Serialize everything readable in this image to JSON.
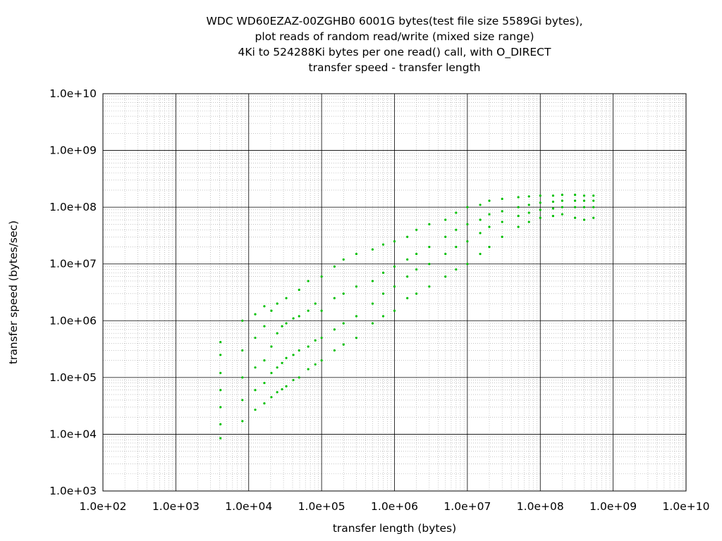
{
  "chart_data": {
    "type": "scatter",
    "title": [
      "WDC WD60EZAZ-00ZGHB0 6001G bytes(test file size 5589Gi bytes),",
      "plot reads of random read/write (mixed size range)",
      "4Ki to 524288Ki bytes per one read() call, with O_DIRECT",
      "transfer speed - transfer length"
    ],
    "xlabel": "transfer length (bytes)",
    "ylabel": "transfer speed (bytes/sec)",
    "x_scale": "log",
    "y_scale": "log",
    "xlim": [
      100,
      10000000000
    ],
    "ylim": [
      1000,
      10000000000
    ],
    "x_ticks": [
      {
        "value": 100,
        "label": "1.0e+02"
      },
      {
        "value": 1000,
        "label": "1.0e+03"
      },
      {
        "value": 10000,
        "label": "1.0e+04"
      },
      {
        "value": 100000,
        "label": "1.0e+05"
      },
      {
        "value": 1000000,
        "label": "1.0e+06"
      },
      {
        "value": 10000000,
        "label": "1.0e+07"
      },
      {
        "value": 100000000,
        "label": "1.0e+08"
      },
      {
        "value": 1000000000,
        "label": "1.0e+09"
      },
      {
        "value": 10000000000,
        "label": "1.0e+10"
      }
    ],
    "y_ticks": [
      {
        "value": 1000,
        "label": "1.0e+03"
      },
      {
        "value": 10000,
        "label": "1.0e+04"
      },
      {
        "value": 100000,
        "label": "1.0e+05"
      },
      {
        "value": 1000000,
        "label": "1.0e+06"
      },
      {
        "value": 10000000,
        "label": "1.0e+07"
      },
      {
        "value": 100000000,
        "label": "1.0e+08"
      },
      {
        "value": 1000000000,
        "label": "1.0e+09"
      },
      {
        "value": 10000000000,
        "label": "1.0e+10"
      }
    ],
    "grid": true,
    "minor_grid": true,
    "series": [
      {
        "color": "#00c000",
        "points": [
          [
            4096,
            8500
          ],
          [
            4096,
            15000
          ],
          [
            4096,
            30000
          ],
          [
            4096,
            60000
          ],
          [
            4096,
            120000
          ],
          [
            4096,
            250000
          ],
          [
            4096,
            420000
          ],
          [
            8192,
            17000
          ],
          [
            8192,
            40000
          ],
          [
            8192,
            100000
          ],
          [
            8192,
            300000
          ],
          [
            8192,
            1000000
          ],
          [
            12288,
            27000
          ],
          [
            12288,
            60000
          ],
          [
            12288,
            150000
          ],
          [
            12288,
            500000
          ],
          [
            12288,
            1300000
          ],
          [
            16384,
            35000
          ],
          [
            16384,
            80000
          ],
          [
            16384,
            200000
          ],
          [
            16384,
            800000
          ],
          [
            16384,
            1800000
          ],
          [
            20480,
            45000
          ],
          [
            20480,
            120000
          ],
          [
            20480,
            350000
          ],
          [
            20480,
            1500000
          ],
          [
            24576,
            55000
          ],
          [
            24576,
            150000
          ],
          [
            24576,
            600000
          ],
          [
            24576,
            2000000
          ],
          [
            28672,
            62000
          ],
          [
            28672,
            180000
          ],
          [
            28672,
            800000
          ],
          [
            32768,
            70000
          ],
          [
            32768,
            220000
          ],
          [
            32768,
            900000
          ],
          [
            32768,
            2500000
          ],
          [
            40960,
            90000
          ],
          [
            40960,
            250000
          ],
          [
            40960,
            1100000
          ],
          [
            49152,
            100000
          ],
          [
            49152,
            300000
          ],
          [
            49152,
            1200000
          ],
          [
            49152,
            3500000
          ],
          [
            65536,
            140000
          ],
          [
            65536,
            350000
          ],
          [
            65536,
            1500000
          ],
          [
            65536,
            5000000
          ],
          [
            81920,
            170000
          ],
          [
            81920,
            450000
          ],
          [
            81920,
            2000000
          ],
          [
            100000,
            200000
          ],
          [
            100000,
            500000
          ],
          [
            100000,
            1500000
          ],
          [
            100000,
            6000000
          ],
          [
            150000,
            300000
          ],
          [
            150000,
            700000
          ],
          [
            150000,
            2500000
          ],
          [
            150000,
            9000000
          ],
          [
            200000,
            380000
          ],
          [
            200000,
            900000
          ],
          [
            200000,
            3000000
          ],
          [
            200000,
            12000000
          ],
          [
            300000,
            500000
          ],
          [
            300000,
            1200000
          ],
          [
            300000,
            4000000
          ],
          [
            300000,
            15000000
          ],
          [
            500000,
            900000
          ],
          [
            500000,
            2000000
          ],
          [
            500000,
            5000000
          ],
          [
            500000,
            18000000
          ],
          [
            700000,
            1200000
          ],
          [
            700000,
            3000000
          ],
          [
            700000,
            7000000
          ],
          [
            700000,
            22000000
          ],
          [
            1000000,
            1500000
          ],
          [
            1000000,
            4000000
          ],
          [
            1000000,
            9000000
          ],
          [
            1000000,
            25000000
          ],
          [
            1500000,
            2500000
          ],
          [
            1500000,
            6000000
          ],
          [
            1500000,
            12000000
          ],
          [
            1500000,
            30000000
          ],
          [
            2000000,
            3000000
          ],
          [
            2000000,
            8000000
          ],
          [
            2000000,
            15000000
          ],
          [
            2000000,
            40000000
          ],
          [
            3000000,
            4000000
          ],
          [
            3000000,
            10000000
          ],
          [
            3000000,
            20000000
          ],
          [
            3000000,
            50000000
          ],
          [
            5000000,
            6000000
          ],
          [
            5000000,
            15000000
          ],
          [
            5000000,
            30000000
          ],
          [
            5000000,
            60000000
          ],
          [
            7000000,
            8000000
          ],
          [
            7000000,
            20000000
          ],
          [
            7000000,
            40000000
          ],
          [
            7000000,
            80000000
          ],
          [
            10000000,
            10000000
          ],
          [
            10000000,
            25000000
          ],
          [
            10000000,
            50000000
          ],
          [
            10000000,
            100000000
          ],
          [
            15000000,
            15000000
          ],
          [
            15000000,
            35000000
          ],
          [
            15000000,
            60000000
          ],
          [
            15000000,
            110000000
          ],
          [
            20000000,
            20000000
          ],
          [
            20000000,
            45000000
          ],
          [
            20000000,
            75000000
          ],
          [
            20000000,
            130000000
          ],
          [
            30000000,
            30000000
          ],
          [
            30000000,
            55000000
          ],
          [
            30000000,
            85000000
          ],
          [
            30000000,
            140000000
          ],
          [
            50000000,
            45000000
          ],
          [
            50000000,
            70000000
          ],
          [
            50000000,
            100000000
          ],
          [
            50000000,
            150000000
          ],
          [
            70000000,
            55000000
          ],
          [
            70000000,
            80000000
          ],
          [
            70000000,
            110000000
          ],
          [
            70000000,
            155000000
          ],
          [
            100000000,
            65000000
          ],
          [
            100000000,
            90000000
          ],
          [
            100000000,
            120000000
          ],
          [
            100000000,
            160000000
          ],
          [
            150000000,
            70000000
          ],
          [
            150000000,
            95000000
          ],
          [
            150000000,
            125000000
          ],
          [
            150000000,
            160000000
          ],
          [
            200000000,
            75000000
          ],
          [
            200000000,
            100000000
          ],
          [
            200000000,
            130000000
          ],
          [
            200000000,
            165000000
          ],
          [
            300000000,
            65000000
          ],
          [
            300000000,
            100000000
          ],
          [
            300000000,
            130000000
          ],
          [
            300000000,
            165000000
          ],
          [
            400000000,
            60000000
          ],
          [
            400000000,
            100000000
          ],
          [
            400000000,
            130000000
          ],
          [
            400000000,
            160000000
          ],
          [
            536870912,
            65000000
          ],
          [
            536870912,
            100000000
          ],
          [
            536870912,
            130000000
          ],
          [
            536870912,
            160000000
          ]
        ]
      }
    ]
  }
}
